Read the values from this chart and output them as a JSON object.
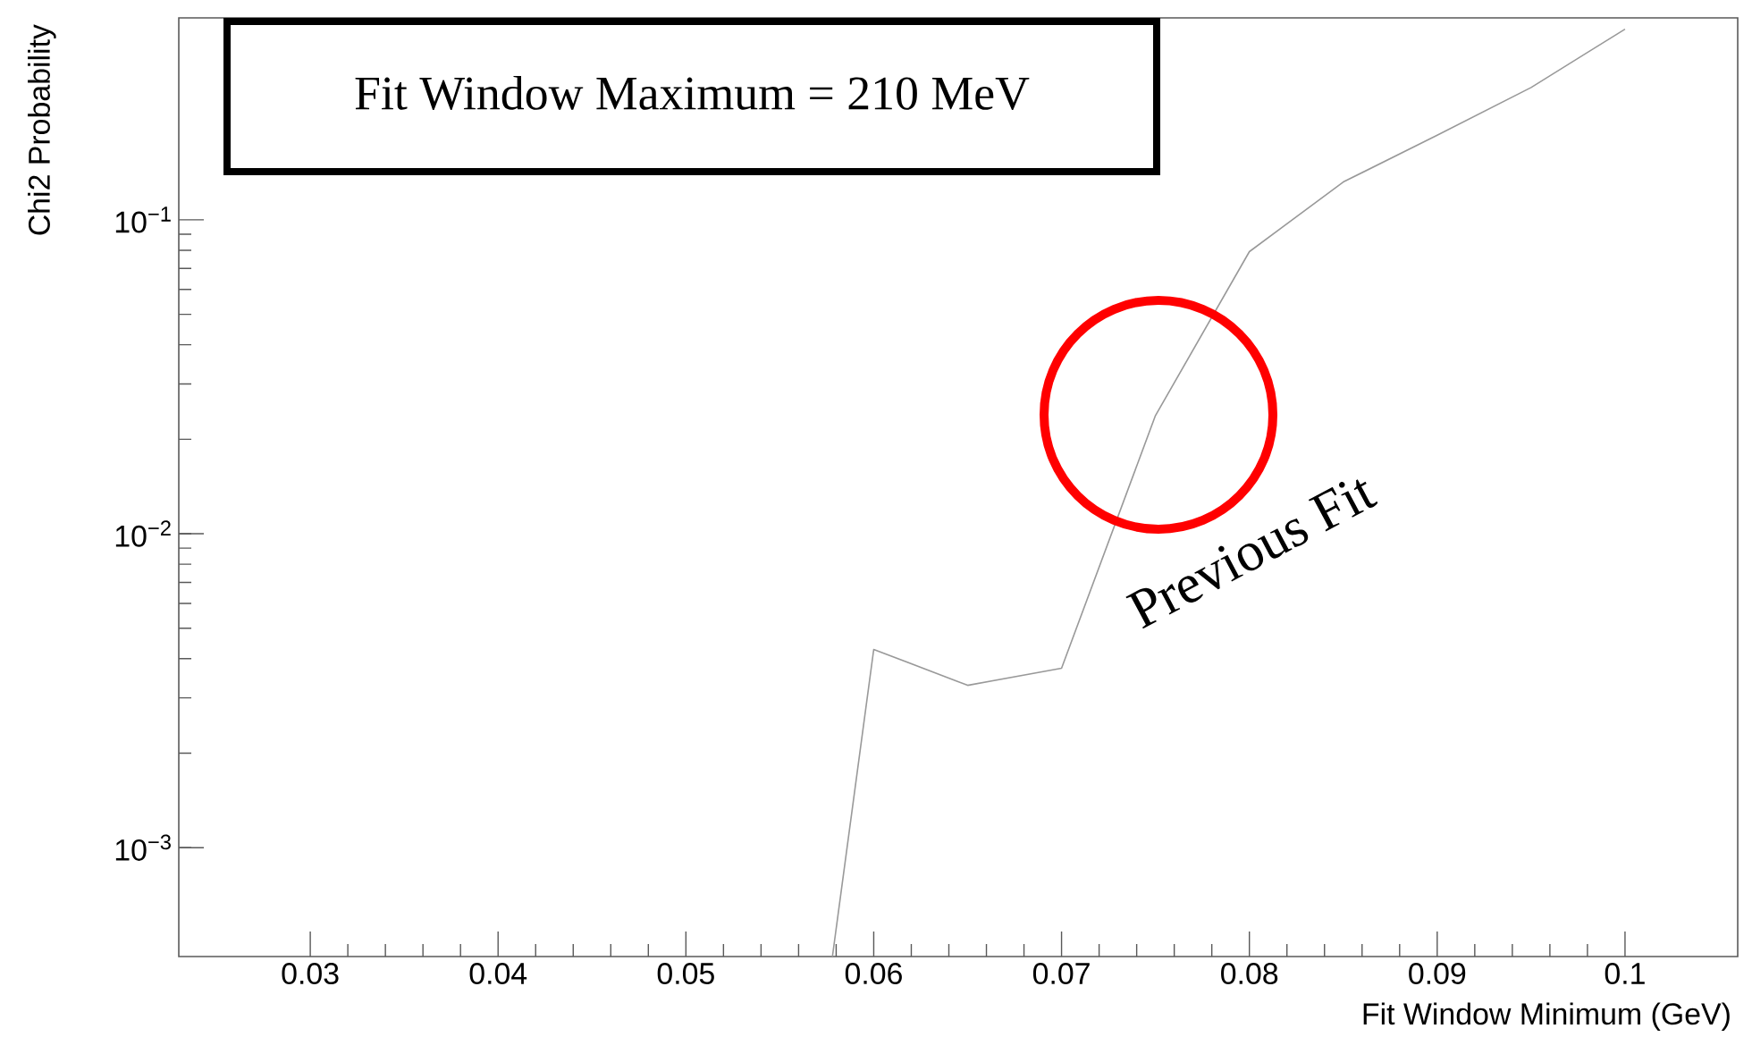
{
  "chart_data": {
    "type": "line",
    "xlabel": "Fit Window Minimum (GeV)",
    "ylabel": "Chi2 Probability",
    "x": [
      0.0578,
      0.06,
      0.065,
      0.07,
      0.075,
      0.08,
      0.085,
      0.09,
      0.095,
      0.1
    ],
    "series": [
      {
        "color": "#999999",
        "values": [
          0.00045,
          0.00428,
          0.00329,
          0.00373,
          0.0238,
          0.0792,
          0.132,
          0.186,
          0.264,
          0.405
        ]
      }
    ],
    "log": "y",
    "xlim": [
      0.023,
      0.106
    ],
    "ylim": [
      0.00045,
      0.44
    ],
    "xticks": [
      0.03,
      0.04,
      0.05,
      0.06,
      0.07,
      0.08,
      0.09,
      0.1
    ],
    "yticks": [
      {
        "value": 0.001,
        "label": "10$^{−3}$"
      },
      {
        "value": 0.01,
        "label": "10$^{−2}$"
      },
      {
        "value": 0.1,
        "label": "10$^{−1}$"
      }
    ],
    "annotations": [
      "Fit Window Maximum = 210 MeV",
      "Previous Fit"
    ]
  }
}
